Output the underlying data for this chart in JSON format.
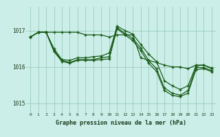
{
  "title": "Graphe pression niveau de la mer (hPa)",
  "bg_color": "#cceee8",
  "grid_color": "#99ccbb",
  "line_color": "#1a5c1a",
  "xlim": [
    -0.5,
    23.5
  ],
  "ylim": [
    1014.75,
    1017.65
  ],
  "yticks": [
    1015,
    1016,
    1017
  ],
  "xticks": [
    0,
    1,
    2,
    3,
    4,
    5,
    6,
    7,
    8,
    9,
    10,
    11,
    12,
    13,
    14,
    15,
    16,
    17,
    18,
    19,
    20,
    21,
    22,
    23
  ],
  "lines": [
    {
      "x": [
        0,
        1,
        2,
        3,
        4,
        5,
        6,
        7,
        8,
        9,
        10,
        11,
        12,
        13,
        14,
        15,
        16,
        17,
        18,
        19,
        20,
        21,
        22,
        23
      ],
      "y": [
        1016.82,
        1016.95,
        1016.95,
        1016.95,
        1016.95,
        1016.95,
        1016.95,
        1016.88,
        1016.88,
        1016.88,
        1016.82,
        1016.88,
        1016.88,
        1016.88,
        1016.25,
        1016.18,
        1016.12,
        1016.05,
        1016.0,
        1016.0,
        1015.95,
        1016.05,
        1016.05,
        1015.97
      ]
    },
    {
      "x": [
        0,
        1,
        2,
        3,
        4,
        5,
        6,
        7,
        8,
        9,
        10,
        11,
        12,
        13,
        14,
        15,
        16,
        17,
        18,
        19,
        20,
        21,
        22,
        23
      ],
      "y": [
        1016.82,
        1016.95,
        1016.95,
        1016.5,
        1016.2,
        1016.18,
        1016.25,
        1016.25,
        1016.28,
        1016.3,
        1016.38,
        1017.12,
        1017.0,
        1016.9,
        1016.62,
        1016.35,
        1016.15,
        1015.62,
        1015.48,
        1015.38,
        1015.48,
        1016.02,
        1016.05,
        1015.95
      ]
    },
    {
      "x": [
        0,
        1,
        2,
        3,
        4,
        5,
        6,
        7,
        8,
        9,
        10,
        11,
        12,
        13,
        14,
        15,
        16,
        17,
        18,
        19,
        20,
        21,
        22,
        23
      ],
      "y": [
        1016.82,
        1016.95,
        1016.95,
        1016.45,
        1016.18,
        1016.12,
        1016.2,
        1016.2,
        1016.2,
        1016.25,
        1016.28,
        1017.08,
        1016.92,
        1016.78,
        1016.52,
        1016.18,
        1015.95,
        1015.42,
        1015.28,
        1015.22,
        1015.35,
        1015.98,
        1015.98,
        1015.9
      ]
    },
    {
      "x": [
        0,
        1,
        2,
        3,
        4,
        5,
        6,
        7,
        8,
        9,
        10,
        11,
        12,
        13,
        14,
        15,
        16,
        17,
        18,
        19,
        20,
        21,
        22,
        23
      ],
      "y": [
        1016.82,
        1016.95,
        1016.95,
        1016.42,
        1016.15,
        1016.1,
        1016.18,
        1016.18,
        1016.18,
        1016.2,
        1016.22,
        1017.05,
        1016.88,
        1016.72,
        1016.45,
        1016.1,
        1015.88,
        1015.35,
        1015.22,
        1015.18,
        1015.28,
        1015.92,
        1015.95,
        1015.87
      ]
    }
  ]
}
